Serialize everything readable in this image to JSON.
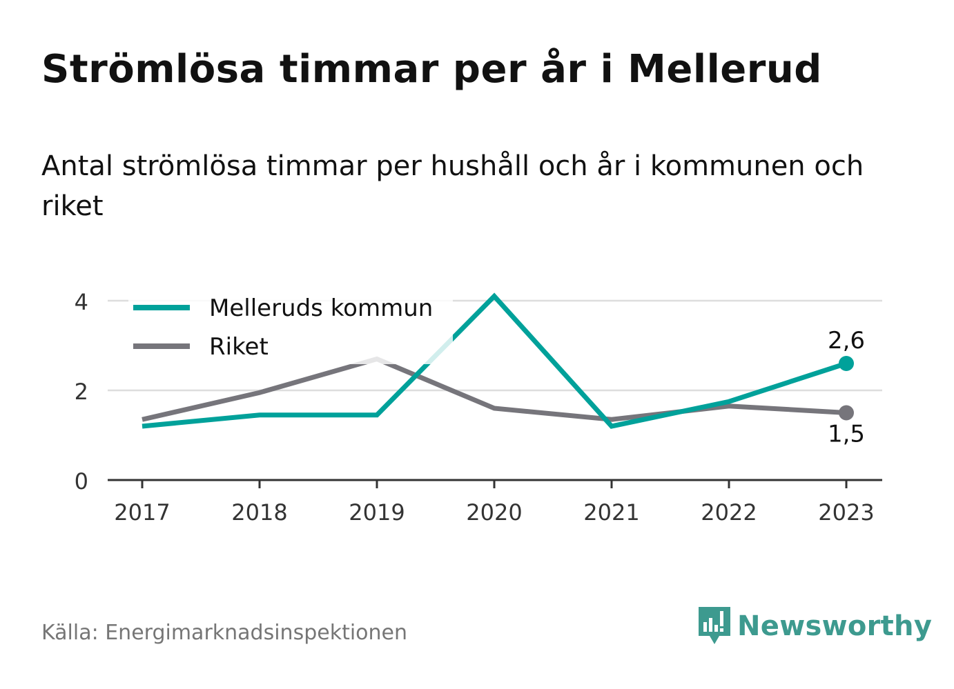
{
  "title": "Strömlösa timmar per år i Mellerud",
  "subtitle": "Antal strömlösa timmar per hushåll och år i kommunen och riket",
  "source": "Källa: Energimarknadsinspektionen",
  "brand": "Newsworthy",
  "colors": {
    "kommun": "#00a19a",
    "riket": "#76757b",
    "grid": "#dddddd",
    "axis": "#333333",
    "brand": "#3d9a8f"
  },
  "chart_data": {
    "type": "line",
    "title": "",
    "xlabel": "",
    "ylabel": "",
    "x": [
      "2017",
      "2018",
      "2019",
      "2020",
      "2021",
      "2022",
      "2023"
    ],
    "ylim": [
      0,
      4
    ],
    "yticks": [
      "0",
      "2",
      "4"
    ],
    "grid": true,
    "legend_position": "top-left",
    "series": [
      {
        "name": "Melleruds kommun",
        "values": [
          1.2,
          1.45,
          1.45,
          4.1,
          1.2,
          1.75,
          2.6
        ],
        "end_label": "2,6"
      },
      {
        "name": "Riket",
        "values": [
          1.35,
          1.95,
          2.7,
          1.6,
          1.35,
          1.65,
          1.5
        ],
        "end_label": "1,5"
      }
    ]
  }
}
